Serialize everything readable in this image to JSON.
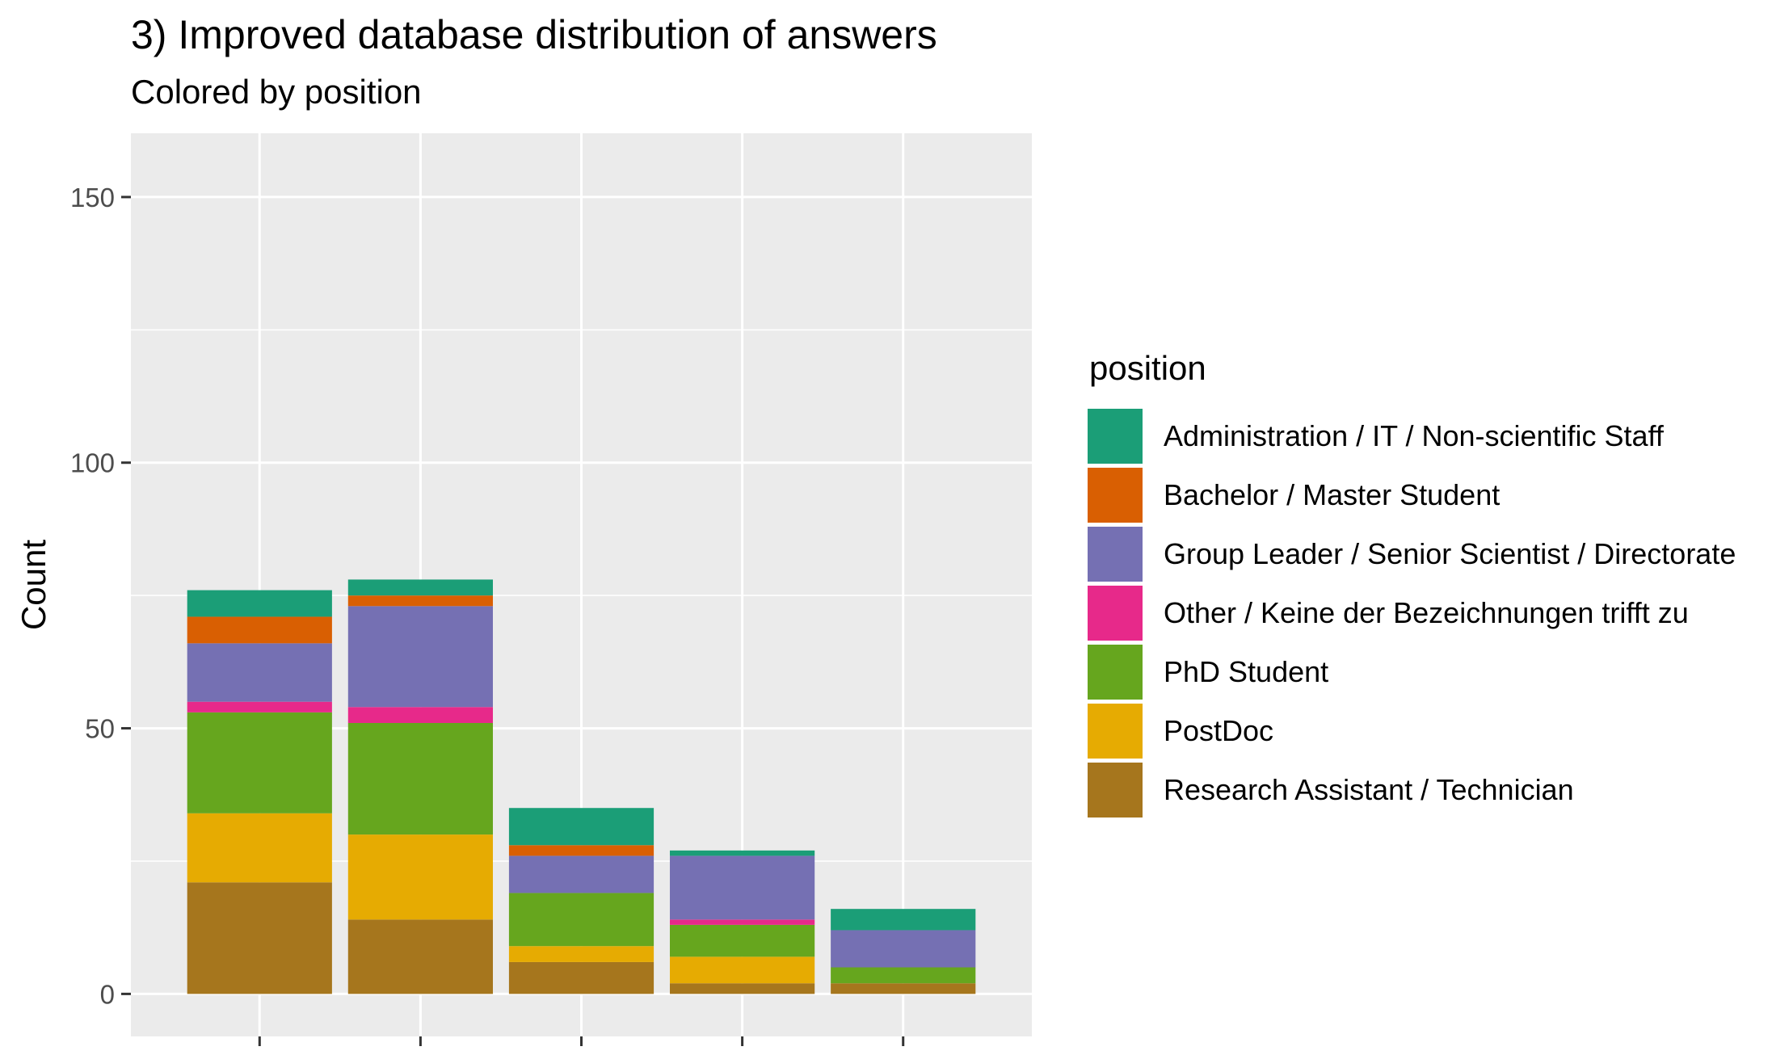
{
  "title": "3) Improved database distribution of answers",
  "subtitle": "Colored by  position",
  "chart_data": {
    "type": "bar",
    "stacked": true,
    "title": "3) Improved database distribution of answers",
    "subtitle": "Colored by  position",
    "xlabel": "",
    "ylabel": "Count",
    "ylim": [
      -8,
      162
    ],
    "yticks": [
      0,
      50,
      100,
      150
    ],
    "categories": [
      "",
      "",
      "",
      "",
      ""
    ],
    "grid": true,
    "legend": {
      "title": "position",
      "position": "right"
    },
    "series": [
      {
        "name": "Research Assistant / Technician",
        "color": "#A6761D",
        "values": [
          21,
          14,
          6,
          2,
          2
        ]
      },
      {
        "name": "PostDoc",
        "color": "#E6AB02",
        "values": [
          13,
          16,
          3,
          5,
          0
        ]
      },
      {
        "name": "PhD Student",
        "color": "#66A61E",
        "values": [
          19,
          21,
          10,
          6,
          3
        ]
      },
      {
        "name": "Other / Keine der Bezeichnungen trifft zu",
        "color": "#E7298A",
        "values": [
          2,
          3,
          0,
          1,
          0
        ]
      },
      {
        "name": "Group Leader / Senior Scientist / Directorate",
        "color": "#7570B3",
        "values": [
          11,
          19,
          7,
          12,
          7
        ]
      },
      {
        "name": "Bachelor / Master Student",
        "color": "#D95F02",
        "values": [
          5,
          2,
          2,
          0,
          0
        ]
      },
      {
        "name": "Administration / IT / Non-scientific Staff",
        "color": "#1B9E77",
        "values": [
          5,
          3,
          7,
          1,
          4
        ]
      }
    ]
  }
}
